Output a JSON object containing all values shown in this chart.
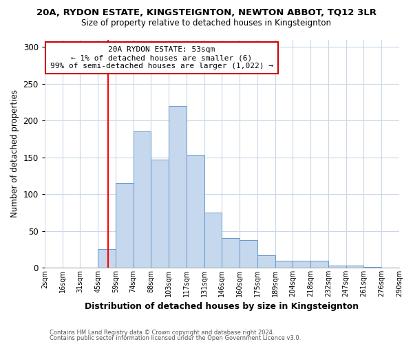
{
  "title": "20A, RYDON ESTATE, KINGSTEIGNTON, NEWTON ABBOT, TQ12 3LR",
  "subtitle": "Size of property relative to detached houses in Kingsteignton",
  "xlabel": "Distribution of detached houses by size in Kingsteignton",
  "ylabel": "Number of detached properties",
  "bar_labels": [
    "2sqm",
    "16sqm",
    "31sqm",
    "45sqm",
    "59sqm",
    "74sqm",
    "88sqm",
    "103sqm",
    "117sqm",
    "131sqm",
    "146sqm",
    "160sqm",
    "175sqm",
    "189sqm",
    "204sqm",
    "218sqm",
    "232sqm",
    "247sqm",
    "261sqm",
    "276sqm",
    "290sqm"
  ],
  "bar_values": [
    0,
    0,
    0,
    25,
    115,
    185,
    147,
    220,
    153,
    75,
    40,
    37,
    17,
    9,
    9,
    9,
    3,
    3,
    1,
    0
  ],
  "bar_color": "#c5d8ed",
  "bar_edge_color": "#6699cc",
  "ylim": [
    0,
    310
  ],
  "yticks": [
    0,
    50,
    100,
    150,
    200,
    250,
    300
  ],
  "annotation_title": "20A RYDON ESTATE: 53sqm",
  "annotation_line1": "← 1% of detached houses are smaller (6)",
  "annotation_line2": "99% of semi-detached houses are larger (1,022) →",
  "annotation_box_color": "#ffffff",
  "annotation_box_edge": "#cc0000",
  "footer1": "Contains HM Land Registry data © Crown copyright and database right 2024.",
  "footer2": "Contains public sector information licensed under the Open Government Licence v3.0.",
  "background_color": "#ffffff",
  "grid_color": "#c8d8e8"
}
